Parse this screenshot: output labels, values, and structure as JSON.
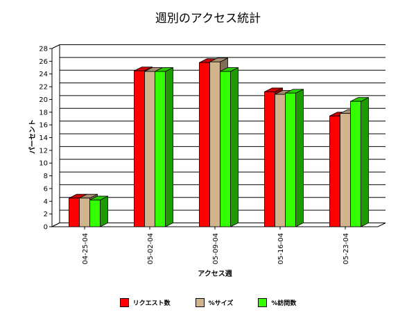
{
  "chart_data": {
    "type": "bar",
    "title": "週別のアクセス統計",
    "xlabel": "アクセス週",
    "ylabel": "パーセント",
    "categories": [
      "04-25-04",
      "05-02-04",
      "05-09-04",
      "05-16-04",
      "05-23-04"
    ],
    "series": [
      {
        "name": "リクエスト数",
        "color": "#ff0000",
        "values": [
          4.5,
          24.5,
          25.8,
          21.2,
          17.4
        ]
      },
      {
        "name": "%サイズ",
        "color": "#d2b48c",
        "values": [
          4.5,
          24.4,
          25.9,
          20.8,
          17.8
        ]
      },
      {
        "name": "%訪問数",
        "color": "#33ff00",
        "values": [
          4.2,
          24.4,
          24.4,
          21.0,
          19.7
        ]
      }
    ],
    "ylim": [
      0,
      28
    ],
    "yticks": [
      0,
      2,
      4,
      6,
      8,
      10,
      12,
      14,
      16,
      18,
      20,
      22,
      24,
      26,
      28
    ],
    "grid": true,
    "legend_position": "bottom"
  }
}
